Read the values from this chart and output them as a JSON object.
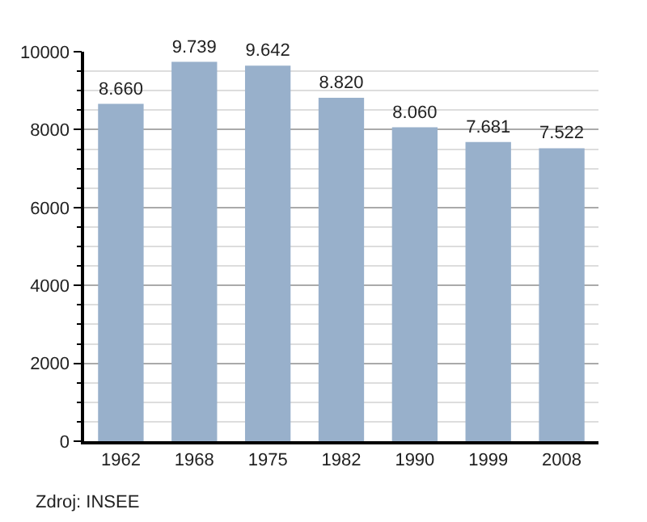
{
  "chart_data": {
    "type": "bar",
    "categories": [
      "1962",
      "1968",
      "1975",
      "1982",
      "1990",
      "1999",
      "2008"
    ],
    "values": [
      8660,
      9739,
      9642,
      8820,
      8060,
      7681,
      7522
    ],
    "value_labels": [
      "8.660",
      "9.739",
      "9.642",
      "8.820",
      "8.060",
      "7.681",
      "7.522"
    ],
    "color": "#98b0cb",
    "ylim": [
      0,
      10000
    ],
    "yticks": [
      0,
      2000,
      4000,
      6000,
      8000,
      10000
    ],
    "grid": "y",
    "legend": false,
    "annotations": [
      "Zdroj: INSEE"
    ]
  }
}
